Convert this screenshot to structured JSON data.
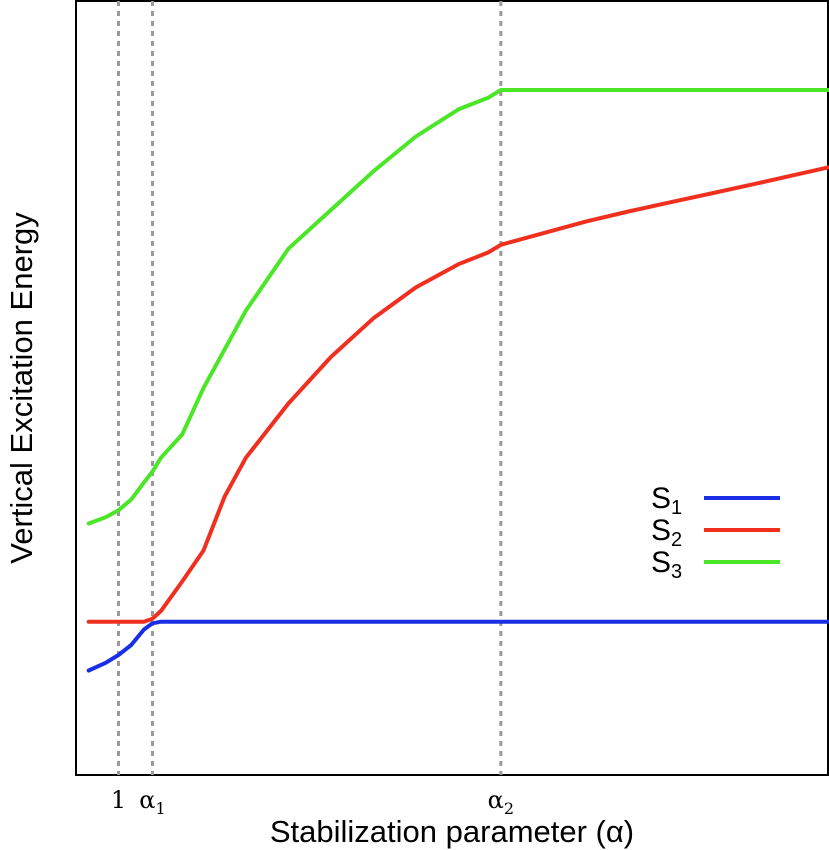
{
  "chart_data": {
    "type": "line",
    "title": "",
    "xlabel": "Stabilization parameter (α)",
    "ylabel": "Vertical Excitation Energy",
    "xlim": [
      0,
      17.7
    ],
    "ylim": [
      0,
      1
    ],
    "grid": false,
    "legend_position": "right",
    "reference_lines": [
      {
        "x": 1,
        "label": "1",
        "sub": ""
      },
      {
        "x": 1.8,
        "label": "α",
        "sub": "1"
      },
      {
        "x": 10,
        "label": "α",
        "sub": "2"
      }
    ],
    "series": [
      {
        "name": "S",
        "sub": "1",
        "color": "#1a2ee6",
        "x": [
          0.3,
          0.7,
          1.0,
          1.3,
          1.6,
          1.8,
          2.0,
          2.5,
          4,
          6,
          8,
          10,
          14,
          17.7
        ],
        "y": [
          0.135,
          0.145,
          0.155,
          0.168,
          0.188,
          0.196,
          0.198,
          0.198,
          0.198,
          0.198,
          0.198,
          0.198,
          0.198,
          0.198
        ]
      },
      {
        "name": "S",
        "sub": "2",
        "color": "#f02f1f",
        "x": [
          0.3,
          0.7,
          1.0,
          1.3,
          1.6,
          1.8,
          2.0,
          2.5,
          3.0,
          3.5,
          4.0,
          5.0,
          6.0,
          7.0,
          8.0,
          9.0,
          9.7,
          10.0,
          11,
          12,
          13,
          14,
          15,
          16,
          17.7
        ],
        "y": [
          0.198,
          0.198,
          0.198,
          0.198,
          0.198,
          0.202,
          0.212,
          0.25,
          0.29,
          0.36,
          0.41,
          0.48,
          0.54,
          0.59,
          0.63,
          0.66,
          0.675,
          0.685,
          0.7,
          0.715,
          0.728,
          0.74,
          0.752,
          0.764,
          0.785
        ]
      },
      {
        "name": "S",
        "sub": "3",
        "color": "#4ce629",
        "x": [
          0.3,
          0.7,
          1.0,
          1.3,
          1.6,
          1.8,
          2.0,
          2.5,
          3.0,
          3.5,
          4.0,
          5.0,
          6.0,
          7.0,
          8.0,
          9.0,
          9.7,
          10.0,
          12,
          14,
          16,
          17.7
        ],
        "y": [
          0.325,
          0.333,
          0.342,
          0.356,
          0.378,
          0.392,
          0.41,
          0.44,
          0.5,
          0.55,
          0.6,
          0.68,
          0.73,
          0.78,
          0.825,
          0.86,
          0.875,
          0.885,
          0.885,
          0.885,
          0.885,
          0.885
        ]
      }
    ]
  }
}
